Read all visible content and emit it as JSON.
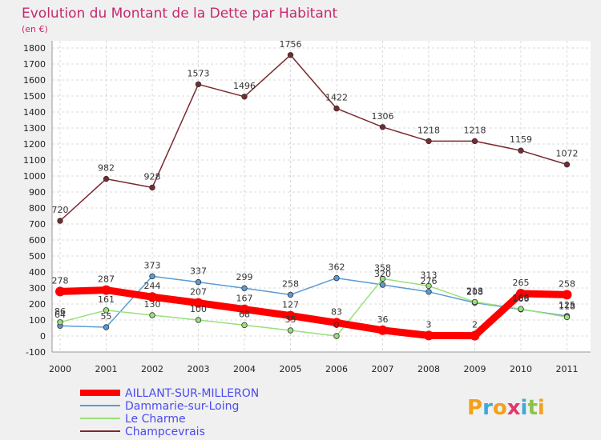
{
  "colors": {
    "background": "#f0f0f0",
    "plot_bg": "#ffffff",
    "title": "#c7286d",
    "legend_text": "#4b4bf0"
  },
  "chart_data": {
    "type": "line",
    "title": "Evolution du Montant de la Dette par Habitant",
    "subtitle": "(en €)",
    "xlabel": "",
    "ylabel": "",
    "categories": [
      "2000",
      "2001",
      "2002",
      "2003",
      "2004",
      "2005",
      "2006",
      "2007",
      "2008",
      "2009",
      "2010",
      "2011"
    ],
    "yticks": [
      -100,
      0,
      100,
      200,
      300,
      400,
      500,
      600,
      700,
      800,
      900,
      1000,
      1100,
      1200,
      1300,
      1400,
      1500,
      1600,
      1700,
      1800
    ],
    "ylim": [
      -100,
      1800
    ],
    "grid": true,
    "legend_position": "bottom-left",
    "series": [
      {
        "name": "AILLANT-SUR-MILLERON",
        "color": "#ff0000",
        "values": [
          278,
          287,
          244,
          207,
          167,
          127,
          83,
          36,
          3,
          2,
          265,
          258
        ],
        "labels": [
          "278",
          "287",
          "244",
          "207",
          "167",
          "127",
          "83",
          "36",
          "3",
          "2",
          "265",
          "258"
        ]
      },
      {
        "name": "Dammarie-sur-Loing",
        "color": "#5b9bd5",
        "values": [
          64,
          55,
          373,
          337,
          299,
          258,
          362,
          320,
          276,
          208,
          166,
          125
        ],
        "labels": [
          "64",
          "55",
          "373",
          "337",
          "299",
          "258",
          "362",
          "320",
          "276",
          "208",
          "166",
          "125"
        ]
      },
      {
        "name": "Le Charme",
        "color": "#99e07a",
        "values": [
          86,
          161,
          130,
          100,
          68,
          35,
          0,
          358,
          313,
          213,
          169,
          118
        ],
        "labels": [
          "86",
          "161",
          "130",
          "100",
          "68",
          "35",
          "0",
          "358",
          "313",
          "213",
          "169",
          "118"
        ]
      },
      {
        "name": "Champcevrais",
        "color": "#7a2a2f",
        "values": [
          720,
          982,
          928,
          1573,
          1496,
          1756,
          1422,
          1306,
          1218,
          1218,
          1159,
          1072
        ],
        "labels": [
          "720",
          "982",
          "928",
          "1573",
          "1496",
          "1756",
          "1422",
          "1306",
          "1218",
          "1218",
          "1159",
          "1072"
        ]
      }
    ]
  },
  "brand": {
    "letters": [
      "P",
      "r",
      "o",
      "x",
      "i",
      "t",
      "i"
    ],
    "colors": [
      "#f5a01a",
      "#3fa9d9",
      "#f5a01a",
      "#e5386d",
      "#3fa9d9",
      "#8bc34a",
      "#f5a01a"
    ]
  }
}
